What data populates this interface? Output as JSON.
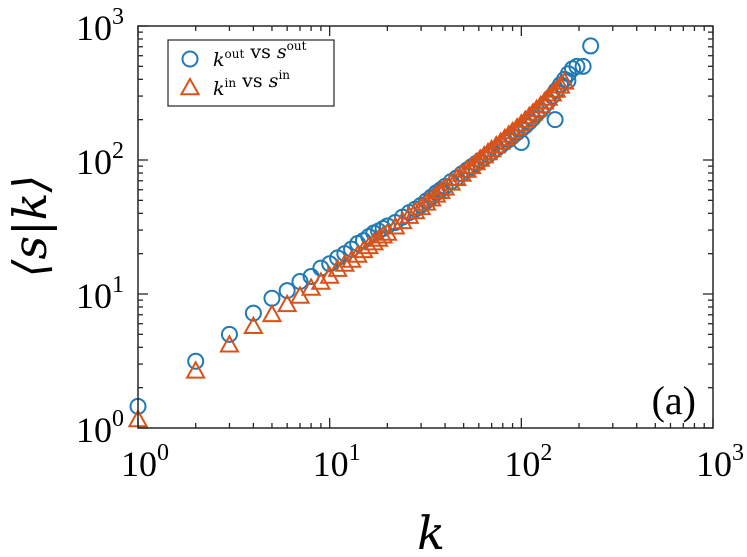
{
  "chart_data": {
    "type": "scatter",
    "title": "",
    "panel_label": "(a)",
    "xlabel": "k",
    "ylabel": "⟨s|k⟩",
    "xscale": "log",
    "yscale": "log",
    "xlim": [
      1,
      1000
    ],
    "ylim": [
      1,
      1000
    ],
    "grid": false,
    "legend_position": "top-left",
    "x_ticks": [
      {
        "base": "10",
        "exp": "0",
        "value": 1
      },
      {
        "base": "10",
        "exp": "1",
        "value": 10
      },
      {
        "base": "10",
        "exp": "2",
        "value": 100
      },
      {
        "base": "10",
        "exp": "3",
        "value": 1000
      }
    ],
    "y_ticks": [
      {
        "base": "10",
        "exp": "0",
        "value": 1
      },
      {
        "base": "10",
        "exp": "1",
        "value": 10
      },
      {
        "base": "10",
        "exp": "2",
        "value": 100
      },
      {
        "base": "10",
        "exp": "3",
        "value": 1000
      }
    ],
    "series": [
      {
        "name": "k^out vs s^out",
        "legend": {
          "k": "k",
          "k_sup": "out",
          "vs": "vs",
          "s": "s",
          "s_sup": "out"
        },
        "marker": "circle",
        "color": "#1f7ab5",
        "x": [
          1,
          2,
          3,
          4,
          5,
          6,
          7,
          8,
          9,
          10,
          11,
          12,
          13,
          14,
          15,
          16,
          17,
          18,
          19,
          20,
          22,
          24,
          26,
          28,
          30,
          32,
          34,
          36,
          38,
          40,
          43,
          46,
          49,
          52,
          55,
          58,
          61,
          64,
          67,
          70,
          74,
          78,
          82,
          86,
          90,
          95,
          100,
          105,
          110,
          115,
          120,
          126,
          132,
          138,
          145,
          152,
          160,
          168,
          176,
          185,
          195,
          210,
          230,
          100,
          150,
          175
        ],
        "y": [
          1.45,
          3.15,
          5.0,
          7.2,
          9.3,
          10.6,
          12.4,
          13.5,
          15.6,
          16.8,
          18.6,
          20.0,
          21.6,
          23.8,
          25.0,
          26.8,
          28.5,
          29.5,
          30.8,
          32.2,
          34.2,
          37.5,
          40.5,
          43.0,
          46.0,
          49.5,
          53.0,
          57.0,
          60.0,
          63.5,
          69.0,
          73.5,
          79.0,
          84.0,
          89.0,
          94.0,
          99.0,
          104.0,
          109.0,
          114.0,
          121.0,
          128.0,
          135.0,
          142.0,
          150.0,
          160.0,
          170.0,
          180.0,
          192.0,
          205.0,
          220.0,
          235.0,
          255.0,
          275.0,
          300.0,
          330.0,
          365.0,
          400.0,
          440.0,
          480.0,
          500.0,
          500.0,
          710.0,
          135.0,
          200.0,
          390.0
        ]
      },
      {
        "name": "k^in vs s^in",
        "legend": {
          "k": "k",
          "k_sup": "in",
          "vs": "vs",
          "s": "s",
          "s_sup": "in"
        },
        "marker": "triangle",
        "color": "#d95319",
        "x": [
          1,
          2,
          3,
          4,
          5,
          6,
          7,
          8,
          9,
          10,
          11,
          12,
          13,
          14,
          15,
          16,
          17,
          18,
          19,
          20,
          22,
          24,
          26,
          28,
          30,
          32,
          34,
          36,
          38,
          40,
          43,
          46,
          49,
          52,
          55,
          58,
          61,
          64,
          67,
          70,
          74,
          78,
          82,
          86,
          90,
          95,
          100,
          105,
          110,
          115,
          120,
          126,
          132,
          138,
          145,
          152,
          160,
          168
        ],
        "y": [
          1.15,
          2.65,
          4.15,
          5.7,
          7.0,
          8.3,
          9.6,
          11.0,
          12.2,
          13.5,
          15.2,
          16.6,
          17.8,
          19.4,
          21.0,
          22.5,
          24.0,
          25.5,
          27.0,
          28.3,
          31.5,
          34.6,
          37.8,
          41.0,
          44.0,
          47.5,
          51.0,
          54.5,
          58.0,
          61.5,
          67.0,
          72.5,
          78.0,
          83.5,
          89.0,
          95.0,
          101.0,
          107.0,
          113.0,
          119.0,
          127.0,
          135.0,
          144.0,
          153.0,
          162.0,
          173.0,
          185.0,
          197.0,
          210.0,
          223.0,
          237.0,
          253.0,
          270.0,
          288.0,
          310.0,
          330.0,
          355.0,
          380.0
        ]
      }
    ]
  }
}
